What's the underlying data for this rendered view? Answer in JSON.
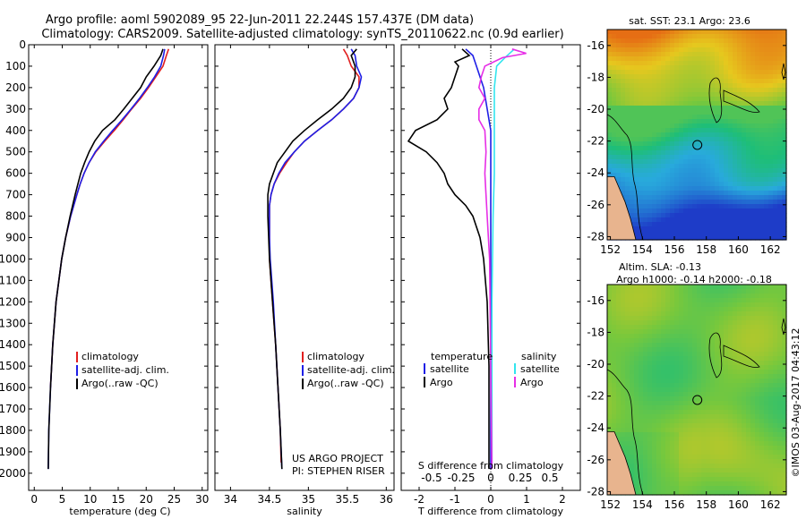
{
  "title": {
    "line1": "Argo profile: aoml 5902089_95 22-Jun-2011 22.244S 157.437E (DM data)",
    "line2": "Climatology: CARS2009. Satellite-adjusted climatology: synTS_20110622.nc (0.9d earlier)"
  },
  "colors": {
    "climatology": "#e11f1f",
    "satellite": "#1f1fe6",
    "argo": "#000000",
    "sat_salinity": "#33e5ee",
    "argo_salinity": "#e62ee6",
    "land": "#e8b48e",
    "coast": "#000000"
  },
  "depth_axis": {
    "ticks": [
      "0",
      "100",
      "200",
      "300",
      "400",
      "500",
      "600",
      "700",
      "800",
      "900",
      "1000",
      "1100",
      "1200",
      "1300",
      "1400",
      "1500",
      "1600",
      "1700",
      "1800",
      "1900",
      "2000"
    ]
  },
  "chart_data": [
    {
      "type": "line",
      "panel": "temperature",
      "xlabel": "temperature (deg C)",
      "xlim": [
        -1,
        31
      ],
      "xticks": [
        "0",
        "5",
        "10",
        "15",
        "20",
        "25",
        "30"
      ],
      "ylim": [
        0,
        2080
      ],
      "legend": [
        "climatology",
        "satellite-adj. clim.",
        "Argo(..raw -QC)"
      ],
      "series": [
        {
          "name": "climatology",
          "depth": [
            20,
            50,
            100,
            150,
            200,
            250,
            300,
            350,
            400,
            450,
            500,
            550,
            600,
            650,
            700,
            800,
            900,
            1000,
            1200,
            1400,
            1600
          ],
          "value": [
            24.0,
            23.6,
            23.0,
            21.7,
            20.4,
            19.0,
            17.4,
            15.9,
            14.3,
            12.6,
            11.0,
            9.8,
            8.9,
            8.2,
            7.6,
            6.5,
            5.6,
            4.9,
            3.9,
            3.3,
            2.9
          ]
        },
        {
          "name": "satellite-adj. clim.",
          "depth": [
            20,
            50,
            100,
            150,
            200,
            250,
            300,
            350,
            400,
            450,
            500,
            550,
            600,
            650,
            700,
            800,
            900,
            1000,
            1200,
            1400,
            1600,
            1800,
            1980
          ],
          "value": [
            23.3,
            23.1,
            22.6,
            21.5,
            20.2,
            18.8,
            17.3,
            15.7,
            14.0,
            12.4,
            10.9,
            9.8,
            8.9,
            8.2,
            7.6,
            6.5,
            5.6,
            4.9,
            3.9,
            3.3,
            2.9,
            2.6,
            2.5
          ]
        },
        {
          "name": "Argo(..raw -QC)",
          "depth": [
            20,
            50,
            100,
            150,
            200,
            250,
            300,
            350,
            400,
            450,
            500,
            550,
            600,
            650,
            700,
            800,
            900,
            1000,
            1200,
            1400,
            1600,
            1800,
            1980
          ],
          "value": [
            23.0,
            22.6,
            21.4,
            20.0,
            19.0,
            17.5,
            16.0,
            14.4,
            12.2,
            10.8,
            9.8,
            9.0,
            8.3,
            7.8,
            7.3,
            6.4,
            5.6,
            4.9,
            3.9,
            3.3,
            2.9,
            2.6,
            2.5
          ]
        }
      ]
    },
    {
      "type": "line",
      "panel": "salinity",
      "xlabel": "salinity",
      "xlim": [
        33.8,
        36.1
      ],
      "xticks": [
        "34",
        "34.5",
        "35",
        "35.5",
        "36"
      ],
      "ylim": [
        0,
        2080
      ],
      "legend": [
        "climatology",
        "satellite-adj. clim.",
        "Argo(..raw -QC)"
      ],
      "annotation": [
        "US ARGO PROJECT",
        "PI: STEPHEN RISER"
      ],
      "series": [
        {
          "name": "climatology",
          "depth": [
            20,
            50,
            100,
            150,
            200,
            250,
            300,
            350,
            400,
            450,
            500,
            550,
            600,
            650,
            700,
            750,
            800,
            900,
            1000,
            1200,
            1400,
            1600,
            1800,
            1950
          ],
          "value": [
            35.45,
            35.5,
            35.55,
            35.65,
            35.65,
            35.58,
            35.45,
            35.3,
            35.12,
            34.95,
            34.82,
            34.72,
            34.63,
            34.56,
            34.52,
            34.5,
            34.5,
            34.5,
            34.5,
            34.54,
            34.58,
            34.61,
            34.64,
            34.65
          ]
        },
        {
          "name": "satellite-adj. clim.",
          "depth": [
            20,
            50,
            100,
            150,
            200,
            250,
            300,
            350,
            400,
            450,
            500,
            550,
            600,
            650,
            700,
            750,
            800,
            900,
            1000,
            1200,
            1400,
            1600,
            1800,
            1980
          ],
          "value": [
            35.55,
            35.6,
            35.62,
            35.68,
            35.65,
            35.58,
            35.45,
            35.3,
            35.12,
            34.95,
            34.82,
            34.7,
            34.62,
            34.56,
            34.52,
            34.5,
            34.5,
            34.5,
            34.51,
            34.55,
            34.58,
            34.61,
            34.64,
            34.66
          ]
        },
        {
          "name": "Argo(..raw -QC)",
          "depth": [
            20,
            50,
            100,
            150,
            200,
            250,
            300,
            350,
            400,
            450,
            500,
            550,
            600,
            650,
            700,
            750,
            800,
            900,
            1000,
            1200,
            1400,
            1600,
            1800,
            1980
          ],
          "value": [
            35.62,
            35.55,
            35.6,
            35.6,
            35.55,
            35.45,
            35.3,
            35.12,
            34.95,
            34.8,
            34.7,
            34.6,
            34.55,
            34.5,
            34.48,
            34.48,
            34.48,
            34.49,
            34.5,
            34.54,
            34.58,
            34.61,
            34.64,
            34.66
          ]
        }
      ]
    },
    {
      "type": "line",
      "panel": "differences",
      "xlabel": "T difference from climatology",
      "xlabel_top": "S difference from climatology",
      "xlim": [
        -2.5,
        2.5
      ],
      "xticks": [
        "-2",
        "-1",
        "0",
        "1",
        "2"
      ],
      "xticks_top": [
        "-0.5",
        "-0.25",
        "0",
        "0.25",
        "0.5"
      ],
      "ylim": [
        0,
        2080
      ],
      "legend_headers": [
        "temperature",
        "salinity"
      ],
      "legend": [
        "satellite",
        "Argo",
        "satellite",
        "Argo"
      ],
      "series": [
        {
          "name": "temperature satellite",
          "depth": [
            20,
            50,
            100,
            200,
            300,
            400,
            500,
            600,
            700,
            800,
            1000,
            1500,
            1980
          ],
          "value": [
            -0.7,
            -0.5,
            -0.4,
            -0.2,
            -0.1,
            0,
            0,
            0,
            0,
            0,
            0,
            0,
            0
          ]
        },
        {
          "name": "temperature Argo",
          "depth": [
            20,
            50,
            80,
            100,
            150,
            200,
            250,
            300,
            350,
            400,
            450,
            500,
            550,
            600,
            650,
            700,
            750,
            800,
            850,
            900,
            1000,
            1200,
            1500,
            1980
          ],
          "value": [
            -0.8,
            -0.6,
            -1.0,
            -0.9,
            -1.0,
            -1.1,
            -1.3,
            -1.2,
            -1.5,
            -2.1,
            -2.3,
            -1.8,
            -1.5,
            -1.3,
            -1.2,
            -1.0,
            -0.7,
            -0.5,
            -0.4,
            -0.3,
            -0.2,
            -0.1,
            -0.05,
            -0.05
          ]
        },
        {
          "name": "salinity satellite",
          "depth": [
            20,
            60,
            100,
            200,
            400,
            600,
            800,
            1200,
            1600,
            1980
          ],
          "value": [
            0.2,
            0.12,
            0.05,
            0.03,
            0.03,
            0.03,
            0.02,
            0.01,
            0.01,
            0.01
          ]
        },
        {
          "name": "salinity Argo",
          "depth": [
            20,
            40,
            60,
            100,
            150,
            200,
            250,
            300,
            350,
            400,
            500,
            600,
            700,
            800,
            1000,
            1500,
            1980
          ],
          "value": [
            0.18,
            0.3,
            0.1,
            -0.05,
            -0.08,
            -0.1,
            -0.05,
            -0.1,
            -0.1,
            -0.05,
            -0.04,
            -0.05,
            -0.04,
            -0.03,
            -0.01,
            0.0,
            0.01
          ]
        }
      ]
    },
    {
      "type": "heatmap",
      "panel": "sat_sst_map",
      "title": "sat. SST: 23.1  Argo: 23.6",
      "xticks": [
        "152",
        "154",
        "156",
        "158",
        "160",
        "162"
      ],
      "yticks": [
        "-16",
        "-18",
        "-20",
        "-22",
        "-24",
        "-26",
        "-28"
      ],
      "lon_range": [
        151.8,
        163.0
      ],
      "lat_range": [
        -28.2,
        -15.0
      ],
      "float_position": {
        "lon": 157.437,
        "lat": -22.244
      }
    },
    {
      "type": "heatmap",
      "panel": "sla_map",
      "title_line1": "Altim. SLA: -0.13",
      "title_line2": "Argo h1000: -0.14 h2000: -0.18",
      "xticks": [
        "152",
        "154",
        "156",
        "158",
        "160",
        "162"
      ],
      "yticks": [
        "-16",
        "-18",
        "-20",
        "-22",
        "-24",
        "-26",
        "-28"
      ],
      "lon_range": [
        151.8,
        163.0
      ],
      "lat_range": [
        -28.2,
        -15.0
      ],
      "float_position": {
        "lon": 157.437,
        "lat": -22.244
      }
    }
  ],
  "stamp": "©IMOS 03-Aug-2017 04:43:12"
}
